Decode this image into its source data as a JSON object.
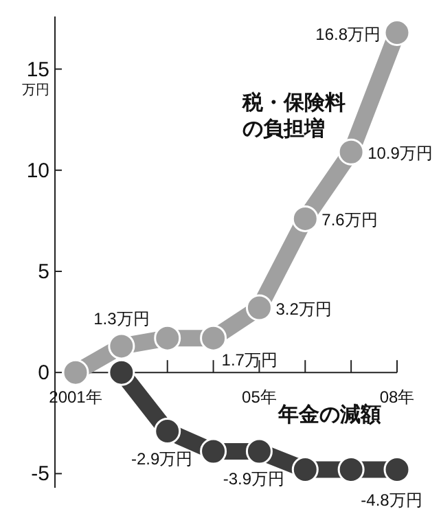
{
  "chart_data": {
    "type": "line",
    "ylabel": "万円",
    "categories": [
      "2001年",
      null,
      null,
      null,
      "05年",
      null,
      null,
      "08年"
    ],
    "ylim": [
      -5.7,
      17.6
    ],
    "yticks": [
      -5,
      0,
      5,
      10,
      15
    ],
    "grid": false,
    "marker": "circle",
    "line_style": "solid",
    "series": [
      {
        "name": "年金の減額",
        "color": "#3c3c3c",
        "values": [
          null,
          0,
          -2.9,
          -3.9,
          -3.9,
          -4.8,
          -4.8,
          -4.8
        ],
        "value_labels": [
          null,
          null,
          "-2.9万円",
          null,
          "-3.9万円",
          null,
          null,
          "-4.8万円"
        ]
      },
      {
        "name": "税・保険料の負担増",
        "color": "#a0a0a0",
        "values": [
          0,
          1.3,
          1.7,
          1.7,
          3.2,
          7.6,
          10.9,
          16.8
        ],
        "value_labels": [
          null,
          "1.3万円",
          null,
          "1.7万円",
          "3.2万円",
          "7.6万円",
          "10.9万円",
          "16.8万円"
        ]
      }
    ]
  }
}
